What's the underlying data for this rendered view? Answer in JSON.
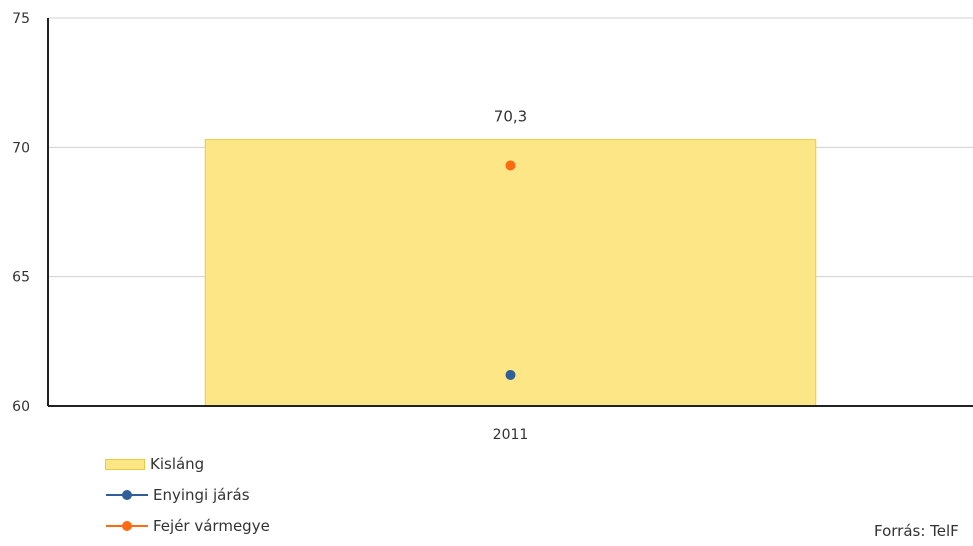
{
  "chart_data": {
    "type": "bar",
    "categories": [
      "2011"
    ],
    "series": [
      {
        "name": "Kisláng",
        "kind": "bar",
        "color": "#fde686",
        "values": [
          70.3
        ],
        "data_labels": [
          "70,3"
        ]
      },
      {
        "name": "Enyingi járás",
        "kind": "line",
        "color": "#2f5f98",
        "values": [
          61.2
        ]
      },
      {
        "name": "Fejér vármegye",
        "kind": "line",
        "color": "#ff6a13",
        "values": [
          69.3
        ]
      }
    ],
    "ylim": [
      60,
      75
    ],
    "yticks": [
      "60",
      "65",
      "70",
      "75"
    ],
    "grid": true,
    "legend_position": "bottom-left"
  },
  "source": "Forrás: TelF"
}
